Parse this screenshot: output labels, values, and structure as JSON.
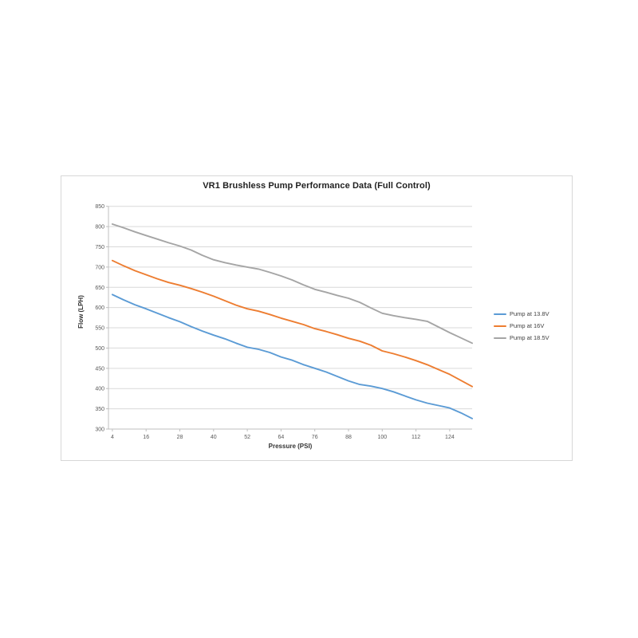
{
  "page": {
    "background": "#ffffff"
  },
  "chart_data": {
    "type": "line",
    "title": "VR1 Brushless Pump Performance Data (Full Control)",
    "xlabel": "Pressure (PSI)",
    "ylabel": "Flow (LPH)",
    "ylim": [
      300,
      850
    ],
    "y_ticks": [
      300,
      350,
      400,
      450,
      500,
      550,
      600,
      650,
      700,
      750,
      800,
      850
    ],
    "x_tick_labels": [
      4,
      16,
      28,
      40,
      52,
      64,
      76,
      88,
      100,
      112,
      124
    ],
    "grid": true,
    "legend_position": "right",
    "x": [
      4,
      8,
      12,
      16,
      20,
      24,
      28,
      32,
      36,
      40,
      44,
      48,
      52,
      56,
      60,
      64,
      68,
      72,
      76,
      80,
      84,
      88,
      92,
      96,
      100,
      104,
      108,
      112,
      116,
      120,
      124,
      128,
      132
    ],
    "series": [
      {
        "name": "Pump at 13.8V",
        "color": "#5B9BD5",
        "values": [
          632,
          619,
          607,
          597,
          586,
          575,
          565,
          553,
          542,
          532,
          523,
          512,
          502,
          497,
          489,
          478,
          470,
          459,
          450,
          441,
          430,
          419,
          410,
          406,
          400,
          392,
          382,
          372,
          364,
          358,
          352,
          340,
          326
        ]
      },
      {
        "name": "Pump at 16V",
        "color": "#ED7D31",
        "values": [
          716,
          703,
          691,
          681,
          671,
          662,
          655,
          647,
          638,
          628,
          617,
          606,
          597,
          591,
          583,
          574,
          566,
          558,
          548,
          541,
          533,
          524,
          517,
          507,
          493,
          486,
          478,
          469,
          459,
          447,
          435,
          420,
          405
        ]
      },
      {
        "name": "Pump at 18.5V",
        "color": "#A5A5A5",
        "values": [
          806,
          797,
          787,
          778,
          769,
          760,
          752,
          742,
          729,
          718,
          711,
          705,
          700,
          695,
          687,
          678,
          668,
          656,
          645,
          638,
          630,
          623,
          613,
          599,
          586,
          580,
          575,
          571,
          566,
          552,
          538,
          525,
          512
        ]
      }
    ],
    "colors": {
      "gridline": "#D9D9D9",
      "axis_line": "#BFBFBF",
      "tick_label": "#595959"
    }
  }
}
